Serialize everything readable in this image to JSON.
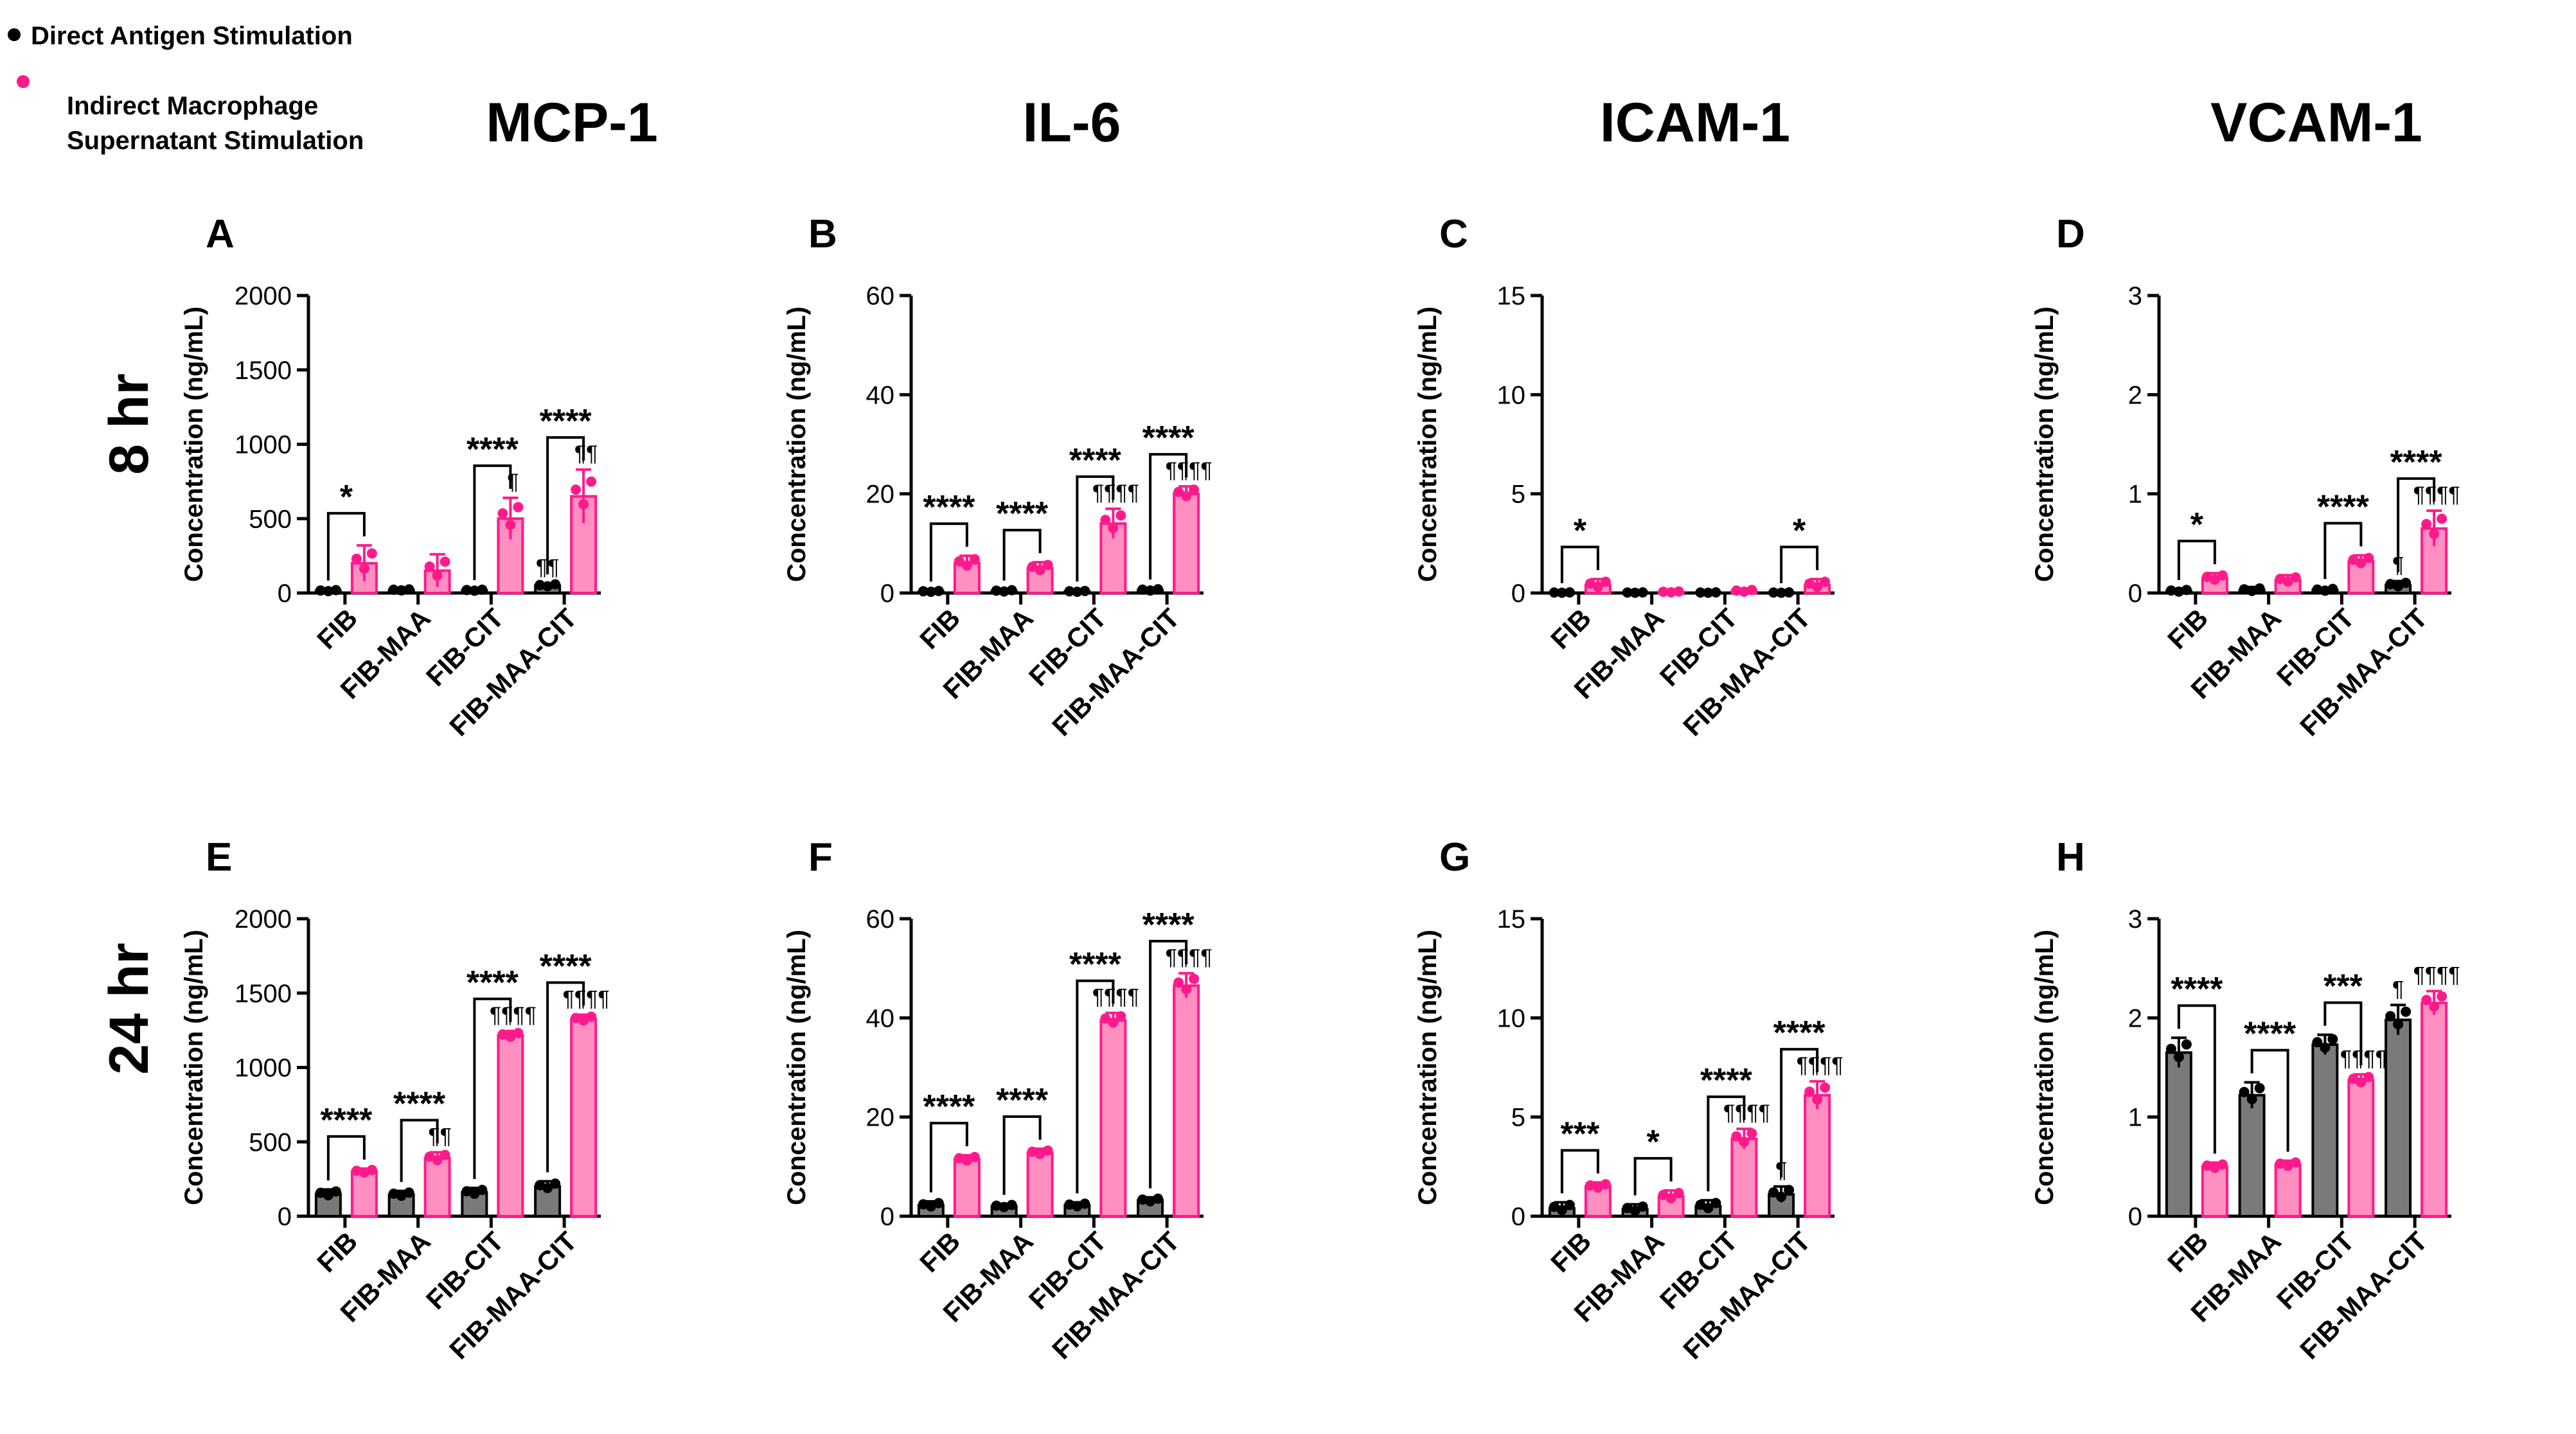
{
  "legend": {
    "items": [
      {
        "label": "Direct Antigen Stimulation",
        "color": "#000000"
      },
      {
        "label": "Indirect Macrophage Supernatant Stimulation",
        "color": "#ff1a8c"
      }
    ]
  },
  "columns": [
    "MCP-1",
    "IL-6",
    "ICAM-1",
    "VCAM-1"
  ],
  "rows": [
    "8 hr",
    "24 hr"
  ],
  "colors": {
    "direct_bar": "#7a7a7a",
    "direct_dot": "#000000",
    "indirect_bar": "#ff8fc0",
    "indirect_edge": "#ff1a8c",
    "indirect_dot": "#ff1a8c"
  },
  "chart_data": [
    {
      "type": "bar",
      "panel": "A",
      "title": "MCP-1",
      "row": "8 hr",
      "ylabel": "Concentration (ng/mL)",
      "ylim": [
        0,
        2000
      ],
      "yticks": [
        0,
        500,
        1000,
        1500,
        2000
      ],
      "categories": [
        "FIB",
        "FIB-MAA",
        "FIB-CIT",
        "FIB-MAA-CIT"
      ],
      "series": [
        {
          "name": "Direct Antigen Stimulation",
          "values": [
            15,
            20,
            18,
            50
          ],
          "errors": [
            8,
            8,
            8,
            15
          ]
        },
        {
          "name": "Indirect Macrophage Supernatant Stimulation",
          "values": [
            200,
            150,
            500,
            650
          ],
          "errors": [
            120,
            110,
            140,
            180
          ]
        }
      ],
      "significance": [
        "*",
        "",
        "****",
        "****"
      ],
      "direct_marks": [
        "",
        "",
        "",
        "¶¶"
      ],
      "indirect_marks": [
        "",
        "",
        "¶",
        "¶¶"
      ]
    },
    {
      "type": "bar",
      "panel": "B",
      "title": "IL-6",
      "row": "8 hr",
      "ylabel": "Concentration (ng/mL)",
      "ylim": [
        0,
        60
      ],
      "yticks": [
        0,
        20,
        40,
        60
      ],
      "categories": [
        "FIB",
        "FIB-MAA",
        "FIB-CIT",
        "FIB-MAA-CIT"
      ],
      "series": [
        {
          "name": "Direct Antigen Stimulation",
          "values": [
            0.3,
            0.4,
            0.3,
            0.6
          ],
          "errors": [
            0.2,
            0.3,
            0.2,
            0.3
          ]
        },
        {
          "name": "Indirect Macrophage Supernatant Stimulation",
          "values": [
            6,
            5,
            14,
            20
          ],
          "errors": [
            1.5,
            1.2,
            3,
            1.5
          ]
        }
      ],
      "significance": [
        "****",
        "****",
        "****",
        "****"
      ],
      "direct_marks": [
        "",
        "",
        "",
        ""
      ],
      "indirect_marks": [
        "",
        "",
        "¶¶¶¶",
        "¶¶¶¶"
      ]
    },
    {
      "type": "bar",
      "panel": "C",
      "title": "ICAM-1",
      "row": "8 hr",
      "ylabel": "Concentration (ng/mL)",
      "ylim": [
        0,
        15
      ],
      "yticks": [
        0,
        5,
        10,
        15
      ],
      "categories": [
        "FIB",
        "FIB-MAA",
        "FIB-CIT",
        "FIB-MAA-CIT"
      ],
      "series": [
        {
          "name": "Direct Antigen Stimulation",
          "values": [
            0.02,
            0.02,
            0.02,
            0.02
          ],
          "errors": [
            0.02,
            0.02,
            0.02,
            0.02
          ]
        },
        {
          "name": "Indirect Macrophage Supernatant Stimulation",
          "values": [
            0.4,
            0.05,
            0.1,
            0.4
          ],
          "errors": [
            0.3,
            0.05,
            0.1,
            0.3
          ]
        }
      ],
      "significance": [
        "*",
        "",
        "",
        "*"
      ],
      "direct_marks": [
        "",
        "",
        "",
        ""
      ],
      "indirect_marks": [
        "",
        "",
        "",
        ""
      ]
    },
    {
      "type": "bar",
      "panel": "D",
      "title": "VCAM-1",
      "row": "8 hr",
      "ylabel": "Concentration (ng/mL)",
      "ylim": [
        0,
        3
      ],
      "yticks": [
        0,
        1,
        2,
        3
      ],
      "categories": [
        "FIB",
        "FIB-MAA",
        "FIB-CIT",
        "FIB-MAA-CIT"
      ],
      "series": [
        {
          "name": "Direct Antigen Stimulation",
          "values": [
            0.02,
            0.03,
            0.03,
            0.08
          ],
          "errors": [
            0.02,
            0.03,
            0.02,
            0.04
          ]
        },
        {
          "name": "Indirect Macrophage Supernatant Stimulation",
          "values": [
            0.15,
            0.13,
            0.32,
            0.65
          ],
          "errors": [
            0.05,
            0.05,
            0.06,
            0.18
          ]
        }
      ],
      "significance": [
        "*",
        "",
        "****",
        "****"
      ],
      "direct_marks": [
        "",
        "",
        "",
        "¶"
      ],
      "indirect_marks": [
        "",
        "",
        "",
        "¶¶¶¶"
      ]
    },
    {
      "type": "bar",
      "panel": "E",
      "title": "MCP-1",
      "row": "24 hr",
      "ylabel": "Concentration (ng/mL)",
      "ylim": [
        0,
        2000
      ],
      "yticks": [
        0,
        500,
        1000,
        1500,
        2000
      ],
      "categories": [
        "FIB",
        "FIB-MAA",
        "FIB-CIT",
        "FIB-MAA-CIT"
      ],
      "series": [
        {
          "name": "Direct Antigen Stimulation",
          "values": [
            150,
            145,
            160,
            200
          ],
          "errors": [
            30,
            25,
            30,
            35
          ]
        },
        {
          "name": "Indirect Macrophage Supernatant Stimulation",
          "values": [
            300,
            390,
            1215,
            1325
          ],
          "errors": [
            20,
            40,
            30,
            30
          ]
        }
      ],
      "significance": [
        "****",
        "****",
        "****",
        "****"
      ],
      "direct_marks": [
        "",
        "",
        "",
        ""
      ],
      "indirect_marks": [
        "",
        "¶¶",
        "¶¶¶¶",
        "¶¶¶¶"
      ]
    },
    {
      "type": "bar",
      "panel": "F",
      "title": "IL-6",
      "row": "24 hr",
      "ylabel": "Concentration (ng/mL)",
      "ylim": [
        0,
        60
      ],
      "yticks": [
        0,
        20,
        40,
        60
      ],
      "categories": [
        "FIB",
        "FIB-MAA",
        "FIB-CIT",
        "FIB-MAA-CIT"
      ],
      "series": [
        {
          "name": "Direct Antigen Stimulation",
          "values": [
            2.2,
            2.0,
            2.2,
            3.2
          ],
          "errors": [
            0.8,
            0.5,
            0.6,
            0.6
          ]
        },
        {
          "name": "Indirect Macrophage Supernatant Stimulation",
          "values": [
            11.5,
            12.8,
            39.5,
            46.5
          ],
          "errors": [
            0.8,
            0.8,
            1.5,
            2.5
          ]
        }
      ],
      "significance": [
        "****",
        "****",
        "****",
        "****"
      ],
      "direct_marks": [
        "",
        "",
        "",
        ""
      ],
      "indirect_marks": [
        "",
        "",
        "¶¶¶¶",
        "¶¶¶¶"
      ]
    },
    {
      "type": "bar",
      "panel": "G",
      "title": "ICAM-1",
      "row": "24 hr",
      "ylabel": "Concentration (ng/mL)",
      "ylim": [
        0,
        15
      ],
      "yticks": [
        0,
        5,
        10,
        15
      ],
      "categories": [
        "FIB",
        "FIB-MAA",
        "FIB-CIT",
        "FIB-MAA-CIT"
      ],
      "series": [
        {
          "name": "Direct Antigen Stimulation",
          "values": [
            0.4,
            0.35,
            0.5,
            1.1
          ],
          "errors": [
            0.3,
            0.25,
            0.3,
            0.4
          ]
        },
        {
          "name": "Indirect Macrophage Supernatant Stimulation",
          "values": [
            1.5,
            1.0,
            3.9,
            6.1
          ],
          "errors": [
            0.2,
            0.3,
            0.5,
            0.7
          ]
        }
      ],
      "significance": [
        "***",
        "*",
        "****",
        "****"
      ],
      "direct_marks": [
        "",
        "",
        "",
        "¶"
      ],
      "indirect_marks": [
        "",
        "",
        "¶¶¶¶",
        "¶¶¶¶"
      ]
    },
    {
      "type": "bar",
      "panel": "H",
      "title": "VCAM-1",
      "row": "24 hr",
      "ylabel": "Concentration (ng/mL)",
      "ylim": [
        0,
        3
      ],
      "yticks": [
        0,
        1,
        2,
        3
      ],
      "categories": [
        "FIB",
        "FIB-MAA",
        "FIB-CIT",
        "FIB-MAA-CIT"
      ],
      "series": [
        {
          "name": "Direct Antigen Stimulation",
          "values": [
            1.65,
            1.22,
            1.73,
            1.98
          ],
          "errors": [
            0.15,
            0.13,
            0.1,
            0.15
          ]
        },
        {
          "name": "Indirect Macrophage Supernatant Stimulation",
          "values": [
            0.5,
            0.52,
            1.37,
            2.15
          ],
          "errors": [
            0.04,
            0.04,
            0.06,
            0.12
          ]
        }
      ],
      "significance": [
        "****",
        "****",
        "***",
        ""
      ],
      "direct_marks": [
        "",
        "",
        "",
        "¶"
      ],
      "indirect_marks": [
        "",
        "",
        "¶¶¶¶",
        "¶¶¶¶"
      ]
    }
  ]
}
